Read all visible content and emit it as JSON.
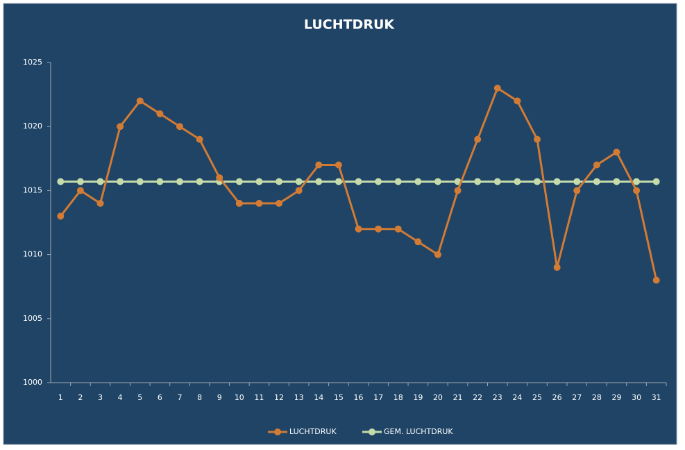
{
  "chart_data": {
    "type": "line",
    "title": "LUCHTDRUK",
    "categories": [
      "1",
      "2",
      "3",
      "4",
      "5",
      "6",
      "7",
      "8",
      "9",
      "10",
      "11",
      "12",
      "13",
      "14",
      "15",
      "16",
      "17",
      "18",
      "19",
      "20",
      "21",
      "22",
      "23",
      "24",
      "25",
      "26",
      "27",
      "28",
      "29",
      "30",
      "31"
    ],
    "series": [
      {
        "name": "LUCHTDRUK",
        "color": "#d27b35",
        "values": [
          1013,
          1015,
          1014,
          1020,
          1022,
          1021,
          1020,
          1019,
          1016,
          1014,
          1014,
          1014,
          1015,
          1017,
          1017,
          1012,
          1012,
          1012,
          1011,
          1010,
          1015,
          1019,
          1023,
          1022,
          1019,
          1009,
          1015,
          1017,
          1018,
          1015,
          1008
        ]
      },
      {
        "name": "GEM. LUCHTDRUK",
        "color": "#c5dbaa",
        "values": [
          1015.7,
          1015.7,
          1015.7,
          1015.7,
          1015.7,
          1015.7,
          1015.7,
          1015.7,
          1015.7,
          1015.7,
          1015.7,
          1015.7,
          1015.7,
          1015.7,
          1015.7,
          1015.7,
          1015.7,
          1015.7,
          1015.7,
          1015.7,
          1015.7,
          1015.7,
          1015.7,
          1015.7,
          1015.7,
          1015.7,
          1015.7,
          1015.7,
          1015.7,
          1015.7,
          1015.7
        ]
      }
    ],
    "ylim": [
      1000,
      1025
    ],
    "yticks": [
      1000,
      1005,
      1010,
      1015,
      1020,
      1025
    ],
    "grid": false,
    "legend": "bottom"
  }
}
